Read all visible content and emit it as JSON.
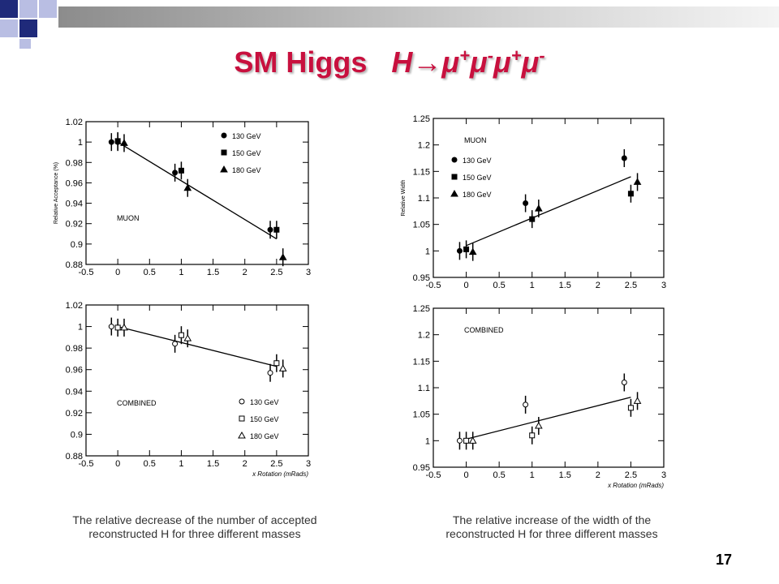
{
  "slide": {
    "title_main": "SM Higgs",
    "title_formula": "H→μ⁺μ⁻μ⁺μ⁻",
    "caption_left": "The relative decrease of the number of accepted reconstructed H for three different masses",
    "caption_right": "The relative increase of the width of the reconstructed H for three different masses",
    "slide_number": "17",
    "colors": {
      "title": "#c8103e",
      "deco_dark": "#1f2a7a",
      "deco_light": "#b9bee3"
    }
  },
  "chart_data": [
    {
      "type": "scatter",
      "label": "MUON",
      "ylabel": "Relative Acceptance (%)",
      "xlabel": "",
      "xlim": [
        -0.5,
        3
      ],
      "ylim": [
        0.88,
        1.02
      ],
      "xticks": [
        "-0.5",
        "0",
        "0.5",
        "1",
        "1.5",
        "2",
        "2.5",
        "3"
      ],
      "yticks": [
        "0.88",
        "0.9",
        "0.92",
        "0.94",
        "0.96",
        "0.98",
        "1",
        "1.02"
      ],
      "legend": [
        "130 GeV",
        "150 GeV",
        "180 GeV"
      ],
      "legend_position": "top-right",
      "markers": "filled",
      "series": [
        {
          "name": "130 GeV",
          "marker": "circle",
          "points": [
            [
              -0.1,
              1.0
            ],
            [
              0.0,
              1.0
            ],
            [
              0.9,
              0.97
            ],
            [
              2.4,
              0.914
            ]
          ]
        },
        {
          "name": "150 GeV",
          "marker": "square",
          "points": [
            [
              0.0,
              1.001
            ],
            [
              1.0,
              0.972
            ],
            [
              2.5,
              0.914
            ]
          ]
        },
        {
          "name": "180 GeV",
          "marker": "triangle",
          "points": [
            [
              0.1,
              0.999
            ],
            [
              1.1,
              0.955
            ],
            [
              2.6,
              0.887
            ]
          ]
        }
      ],
      "fit": [
        [
          0.0,
          1.0
        ],
        [
          2.5,
          0.905
        ]
      ]
    },
    {
      "type": "scatter",
      "label": "MUON",
      "ylabel": "Relative Width",
      "xlabel": "",
      "xlim": [
        -0.5,
        3
      ],
      "ylim": [
        0.95,
        1.25
      ],
      "xticks": [
        "-0.5",
        "0",
        "0.5",
        "1",
        "1.5",
        "2",
        "2.5",
        "3"
      ],
      "yticks": [
        "0.95",
        "1",
        "1.05",
        "1.1",
        "1.15",
        "1.2",
        "1.25"
      ],
      "legend": [
        "130 GeV",
        "150 GeV",
        "180 GeV"
      ],
      "legend_position": "top-left",
      "markers": "filled",
      "series": [
        {
          "name": "130 GeV",
          "marker": "circle",
          "points": [
            [
              -0.1,
              1.0
            ],
            [
              0.9,
              1.09
            ],
            [
              2.4,
              1.175
            ]
          ]
        },
        {
          "name": "150 GeV",
          "marker": "square",
          "points": [
            [
              0.0,
              1.003
            ],
            [
              1.0,
              1.06
            ],
            [
              2.5,
              1.108
            ]
          ]
        },
        {
          "name": "180 GeV",
          "marker": "triangle",
          "points": [
            [
              0.1,
              0.998
            ],
            [
              1.1,
              1.08
            ],
            [
              2.6,
              1.13
            ]
          ]
        }
      ],
      "fit": [
        [
          0.0,
          1.01
        ],
        [
          2.5,
          1.14
        ]
      ]
    },
    {
      "type": "scatter",
      "label": "COMBINED",
      "ylabel": "",
      "xlabel": "x Rotation (mRads)",
      "xlim": [
        -0.5,
        3
      ],
      "ylim": [
        0.88,
        1.02
      ],
      "xticks": [
        "-0.5",
        "0",
        "0.5",
        "1",
        "1.5",
        "2",
        "2.5",
        "3"
      ],
      "yticks": [
        "0.88",
        "0.9",
        "0.92",
        "0.94",
        "0.96",
        "0.98",
        "1",
        "1.02"
      ],
      "legend": [
        "130 GeV",
        "150 GeV",
        "180 GeV"
      ],
      "legend_position": "bottom-right",
      "markers": "open",
      "series": [
        {
          "name": "130 GeV",
          "marker": "circle",
          "points": [
            [
              -0.1,
              1.0
            ],
            [
              0.9,
              0.984
            ],
            [
              2.4,
              0.957
            ]
          ]
        },
        {
          "name": "150 GeV",
          "marker": "square",
          "points": [
            [
              0.0,
              0.999
            ],
            [
              1.0,
              0.992
            ],
            [
              2.5,
              0.966
            ]
          ]
        },
        {
          "name": "180 GeV",
          "marker": "triangle",
          "points": [
            [
              0.1,
              0.999
            ],
            [
              1.1,
              0.989
            ],
            [
              2.6,
              0.961
            ]
          ]
        }
      ],
      "fit": [
        [
          0.0,
          1.0
        ],
        [
          2.5,
          0.963
        ]
      ]
    },
    {
      "type": "scatter",
      "label": "COMBINED",
      "ylabel": "",
      "xlabel": "x Rotation (mRads)",
      "xlim": [
        -0.5,
        3
      ],
      "ylim": [
        0.95,
        1.25
      ],
      "xticks": [
        "-0.5",
        "0",
        "0.5",
        "1",
        "1.5",
        "2",
        "2.5",
        "3"
      ],
      "yticks": [
        "0.95",
        "1",
        "1.05",
        "1.1",
        "1.15",
        "1.2",
        "1.25"
      ],
      "legend": [],
      "legend_position": "",
      "markers": "open",
      "series": [
        {
          "name": "130 GeV",
          "marker": "circle",
          "points": [
            [
              -0.1,
              1.0
            ],
            [
              0.9,
              1.068
            ],
            [
              2.4,
              1.11
            ]
          ]
        },
        {
          "name": "150 GeV",
          "marker": "square",
          "points": [
            [
              0.0,
              1.0
            ],
            [
              1.0,
              1.01
            ],
            [
              2.5,
              1.062
            ]
          ]
        },
        {
          "name": "180 GeV",
          "marker": "triangle",
          "points": [
            [
              0.1,
              1.0
            ],
            [
              1.1,
              1.028
            ],
            [
              2.6,
              1.075
            ]
          ]
        }
      ],
      "fit": [
        [
          0.0,
          1.003
        ],
        [
          2.5,
          1.082
        ]
      ]
    }
  ]
}
